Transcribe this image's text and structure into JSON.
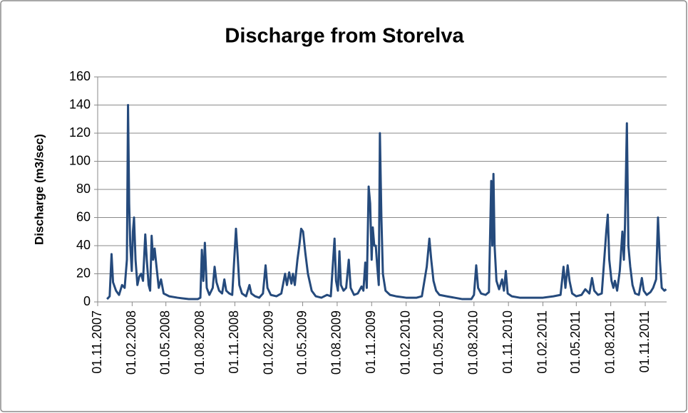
{
  "chart_data": {
    "type": "line",
    "title": "Discharge from Storelva",
    "y_label": "Discharge (m3/sec)",
    "color": "#254a7c",
    "grid": true,
    "ylim": [
      0,
      160
    ],
    "yticks": [
      0,
      20,
      40,
      60,
      80,
      100,
      120,
      140,
      160
    ],
    "xlim": [
      "01.11.2007",
      "28.12.2011"
    ],
    "xticks": [
      "01.11.2007",
      "01.02.2008",
      "01.05.2008",
      "01.08.2008",
      "01.11.2008",
      "01.02.2009",
      "01.05.2009",
      "01.08.2009",
      "01.11.2009",
      "01.02.2010",
      "01.05.2010",
      "01.08.2010",
      "01.11.2010",
      "01.02.2011",
      "01.05.2011",
      "01.08.2011",
      "01.11.2011"
    ],
    "x": [
      "26.11.2007",
      "03.12.2007",
      "08.12.2007",
      "12.12.2007",
      "20.12.2007",
      "28.12.2007",
      "05.01.2008",
      "12.01.2008",
      "18.01.2008",
      "21.01.2008",
      "24.01.2008",
      "27.01.2008",
      "31.01.2008",
      "03.02.2008",
      "06.02.2008",
      "10.02.2008",
      "15.02.2008",
      "20.02.2008",
      "25.02.2008",
      "01.03.2008",
      "07.03.2008",
      "11.03.2008",
      "16.03.2008",
      "20.03.2008",
      "24.03.2008",
      "28.03.2008",
      "01.04.2008",
      "06.04.2008",
      "12.04.2008",
      "18.04.2008",
      "25.04.2008",
      "10.05.2008",
      "01.06.2008",
      "01.07.2008",
      "25.07.2008",
      "01.08.2008",
      "05.08.2008",
      "09.08.2008",
      "13.08.2008",
      "18.08.2008",
      "25.08.2008",
      "03.09.2008",
      "08.09.2008",
      "13.09.2008",
      "20.09.2008",
      "28.09.2008",
      "04.10.2008",
      "09.10.2008",
      "17.10.2008",
      "25.10.2008",
      "04.11.2008",
      "08.11.2008",
      "13.11.2008",
      "20.11.2008",
      "01.12.2008",
      "10.12.2008",
      "15.12.2008",
      "25.12.2008",
      "05.01.2009",
      "15.01.2009",
      "22.01.2009",
      "27.01.2009",
      "05.02.2009",
      "20.02.2009",
      "05.03.2009",
      "15.03.2009",
      "20.03.2009",
      "26.03.2009",
      "01.04.2009",
      "05.04.2009",
      "10.04.2009",
      "17.04.2009",
      "22.04.2009",
      "27.04.2009",
      "02.05.2009",
      "08.05.2009",
      "15.05.2009",
      "25.05.2009",
      "05.06.2009",
      "20.06.2009",
      "05.07.2009",
      "15.07.2009",
      "25.07.2009",
      "29.07.2009",
      "03.08.2009",
      "07.08.2009",
      "11.08.2009",
      "18.08.2009",
      "25.08.2009",
      "01.09.2009",
      "06.09.2009",
      "15.09.2009",
      "25.09.2009",
      "05.10.2009",
      "10.10.2009",
      "15.10.2009",
      "19.10.2009",
      "24.10.2009",
      "28.10.2009",
      "01.11.2009",
      "04.11.2009",
      "08.11.2009",
      "12.11.2009",
      "16.11.2009",
      "20.11.2009",
      "23.11.2009",
      "27.11.2009",
      "01.12.2009",
      "08.12.2009",
      "20.12.2009",
      "05.01.2010",
      "01.02.2010",
      "01.03.2010",
      "15.03.2010",
      "28.03.2010",
      "04.04.2010",
      "09.04.2010",
      "15.04.2010",
      "22.04.2010",
      "01.05.2010",
      "20.05.2010",
      "10.06.2010",
      "01.07.2010",
      "25.07.2010",
      "01.08.2010",
      "07.08.2010",
      "12.08.2010",
      "20.08.2010",
      "01.09.2010",
      "10.09.2010",
      "16.09.2010",
      "19.09.2010",
      "22.09.2010",
      "25.09.2010",
      "30.09.2010",
      "07.10.2010",
      "15.10.2010",
      "20.10.2010",
      "25.10.2010",
      "30.10.2010",
      "10.11.2010",
      "01.12.2010",
      "01.01.2011",
      "01.02.2011",
      "01.03.2011",
      "20.03.2011",
      "28.03.2011",
      "02.04.2011",
      "08.04.2011",
      "13.04.2011",
      "20.04.2011",
      "01.05.2011",
      "15.05.2011",
      "25.05.2011",
      "05.06.2011",
      "12.06.2011",
      "18.06.2011",
      "28.06.2011",
      "08.07.2011",
      "20.07.2011",
      "24.07.2011",
      "28.07.2011",
      "03.08.2011",
      "08.08.2011",
      "12.08.2011",
      "18.08.2011",
      "25.08.2011",
      "01.09.2011",
      "05.09.2011",
      "08.09.2011",
      "13.09.2011",
      "17.09.2011",
      "22.09.2011",
      "28.09.2011",
      "05.10.2011",
      "15.10.2011",
      "23.10.2011",
      "28.10.2011",
      "05.11.2011",
      "15.11.2011",
      "22.11.2011",
      "30.11.2011",
      "05.12.2011",
      "10.12.2011",
      "15.12.2011",
      "22.12.2011",
      "27.12.2011"
    ],
    "values": [
      2,
      4,
      34,
      14,
      8,
      5,
      12,
      10,
      30,
      140,
      70,
      40,
      22,
      50,
      60,
      30,
      12,
      18,
      20,
      15,
      48,
      30,
      12,
      8,
      47,
      30,
      38,
      25,
      10,
      16,
      6,
      4,
      3,
      2,
      2,
      3,
      37,
      15,
      42,
      10,
      5,
      10,
      25,
      14,
      8,
      6,
      16,
      8,
      6,
      5,
      52,
      35,
      12,
      6,
      4,
      12,
      6,
      4,
      3,
      6,
      26,
      10,
      5,
      4,
      6,
      20,
      12,
      21,
      13,
      20,
      12,
      30,
      40,
      52,
      50,
      35,
      20,
      8,
      4,
      3,
      5,
      4,
      45,
      15,
      8,
      36,
      12,
      8,
      10,
      30,
      10,
      5,
      6,
      11,
      8,
      28,
      10,
      82,
      70,
      30,
      53,
      40,
      40,
      25,
      12,
      120,
      60,
      20,
      8,
      5,
      4,
      3,
      3,
      4,
      25,
      45,
      30,
      15,
      8,
      5,
      4,
      3,
      2,
      2,
      5,
      26,
      10,
      6,
      5,
      7,
      86,
      40,
      91,
      40,
      15,
      9,
      16,
      8,
      22,
      6,
      4,
      3,
      3,
      3,
      4,
      5,
      25,
      10,
      26,
      15,
      6,
      4,
      5,
      9,
      6,
      17,
      8,
      5,
      6,
      50,
      62,
      30,
      15,
      10,
      15,
      8,
      22,
      50,
      30,
      55,
      127,
      40,
      25,
      12,
      6,
      5,
      17,
      8,
      5,
      7,
      10,
      16,
      60,
      30,
      10,
      8,
      9
    ]
  }
}
